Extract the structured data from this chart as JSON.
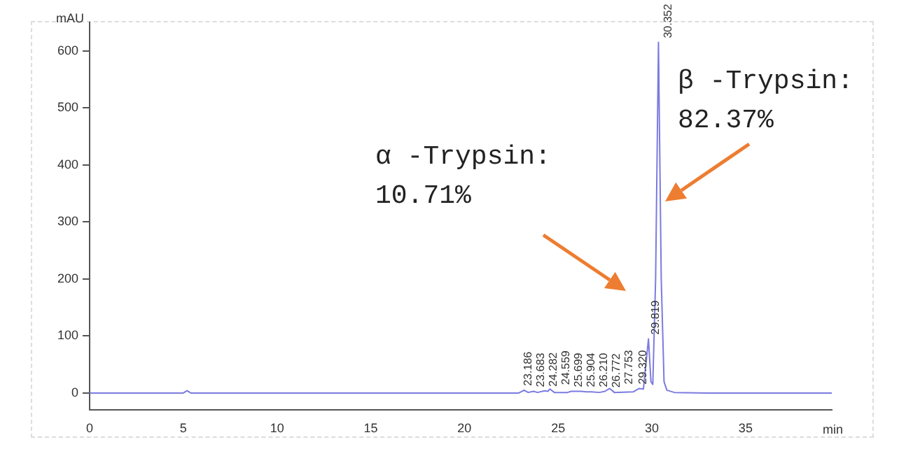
{
  "chart_data": {
    "type": "line",
    "xlabel": "min",
    "ylabel": "mAU",
    "x": [
      0,
      5.0,
      5.2,
      5.4,
      22.9,
      23.186,
      23.4,
      23.683,
      23.9,
      24.282,
      24.45,
      24.559,
      24.8,
      25.5,
      25.699,
      25.9,
      26.0,
      26.21,
      26.5,
      26.772,
      27.2,
      27.5,
      27.753,
      28.0,
      29.0,
      29.32,
      29.55,
      29.819,
      29.95,
      30.05,
      30.2,
      30.352,
      30.5,
      30.65,
      30.8,
      31.2,
      33,
      39.6
    ],
    "series": [
      {
        "color": "#7b7be0",
        "values": [
          0,
          0,
          4,
          0,
          0,
          5,
          1,
          3,
          1,
          4,
          3,
          7,
          1,
          1,
          3,
          3,
          3,
          3,
          2,
          2,
          1,
          3,
          8,
          1,
          2,
          8,
          7,
          95,
          20,
          15,
          200,
          615,
          200,
          20,
          5,
          1,
          0,
          0
        ]
      }
    ],
    "xlim": [
      0,
      39.6
    ],
    "xticks": [
      0,
      5,
      10,
      15,
      20,
      25,
      30,
      35
    ],
    "ylim": [
      -30,
      650
    ],
    "yticks": [
      0,
      100,
      200,
      300,
      400,
      500,
      600
    ],
    "grid": false,
    "legend": false,
    "marker": "none",
    "line_style": "solid",
    "annotations": [
      {
        "text": "23.186",
        "x": 23.186,
        "y": 5
      },
      {
        "text": "23.683",
        "x": 23.683,
        "y": 3
      },
      {
        "text": "24.282",
        "x": 24.282,
        "y": 4
      },
      {
        "text": "24.559",
        "x": 24.559,
        "y": 7
      },
      {
        "text": "25.699",
        "x": 25.699,
        "y": 3
      },
      {
        "text": "25.904",
        "x": 25.9,
        "y": 3
      },
      {
        "text": "26.210",
        "x": 26.21,
        "y": 3
      },
      {
        "text": "26.772",
        "x": 26.772,
        "y": 2
      },
      {
        "text": "27.753",
        "x": 27.753,
        "y": 8
      },
      {
        "text": "29.320",
        "x": 29.32,
        "y": 8
      },
      {
        "text": "29.819",
        "x": 29.819,
        "y": 95
      },
      {
        "text": "30.352",
        "x": 30.352,
        "y": 615
      },
      "α -Trypsin:\n10.71%",
      "β -Trypsin:\n82.37%"
    ]
  }
}
